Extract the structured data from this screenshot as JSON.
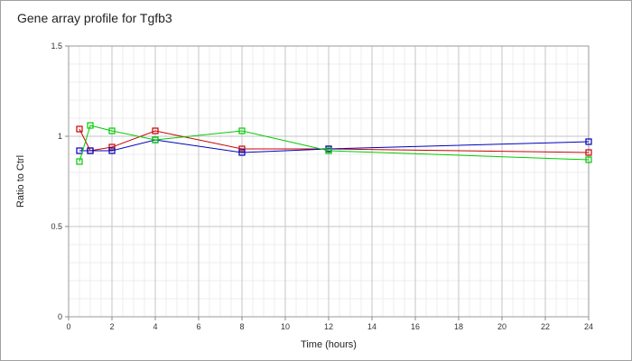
{
  "chart_data": {
    "type": "line",
    "title": "Gene array profile for Tgfb3",
    "xlabel": "Time (hours)",
    "ylabel": "Ratio to Ctrl",
    "xlim": [
      0,
      24
    ],
    "ylim": [
      0,
      1.5
    ],
    "x_ticks": [
      "0",
      "2",
      "4",
      "6",
      "8",
      "10",
      "12",
      "14",
      "16",
      "18",
      "20",
      "22",
      "24"
    ],
    "y_ticks": [
      "0",
      "0.5",
      "1",
      "1.5"
    ],
    "grid": true,
    "legend": "none",
    "series": [
      {
        "color": "#cc0000",
        "x": [
          0.5,
          1,
          2,
          4,
          8,
          12,
          24
        ],
        "y": [
          1.04,
          0.92,
          0.94,
          1.03,
          0.93,
          0.93,
          0.91
        ]
      },
      {
        "color": "#0000bb",
        "x": [
          0.5,
          1,
          2,
          4,
          8,
          12,
          24
        ],
        "y": [
          0.92,
          0.92,
          0.92,
          0.98,
          0.91,
          0.93,
          0.97
        ]
      },
      {
        "color": "#00cc00",
        "x": [
          0.5,
          1,
          2,
          4,
          8,
          12,
          24
        ],
        "y": [
          0.86,
          1.06,
          1.03,
          0.98,
          1.03,
          0.92,
          0.87
        ]
      }
    ]
  }
}
